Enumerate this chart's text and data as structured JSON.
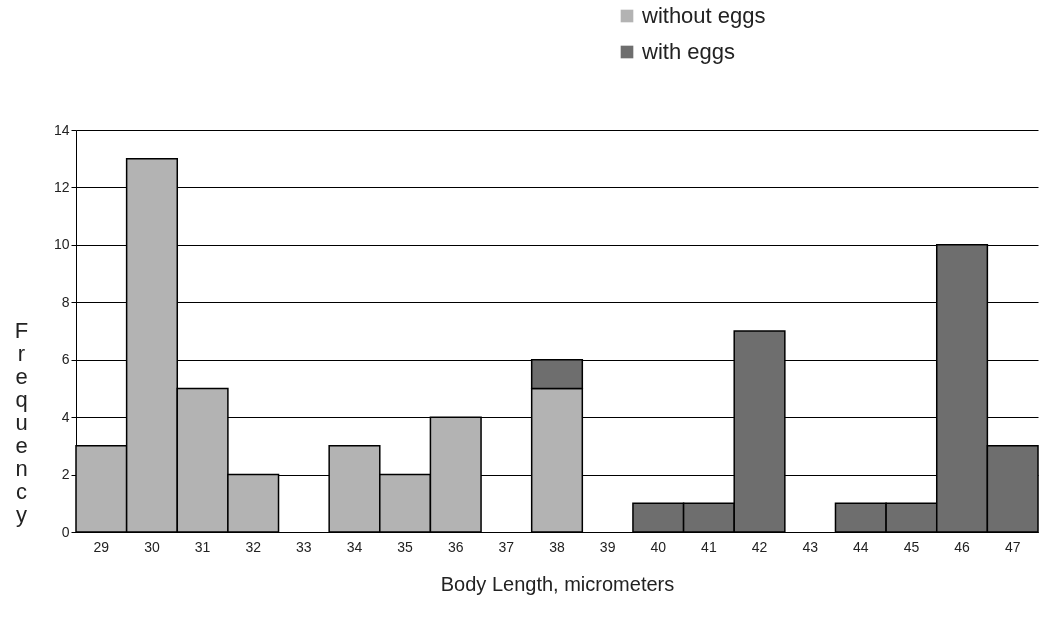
{
  "chart_data": {
    "type": "bar",
    "stacked": true,
    "xlabel": "Body Length, micrometers",
    "ylabel": "Frequency",
    "categories": [
      "29",
      "30",
      "31",
      "32",
      "33",
      "34",
      "35",
      "36",
      "37",
      "38",
      "39",
      "40",
      "41",
      "42",
      "43",
      "44",
      "45",
      "46",
      "47"
    ],
    "series": [
      {
        "name": "without eggs",
        "color": "#b3b3b3",
        "values": [
          3,
          13,
          5,
          2,
          null,
          3,
          2,
          4,
          null,
          5,
          null,
          null,
          null,
          null,
          null,
          null,
          null,
          null,
          null
        ]
      },
      {
        "name": "with eggs",
        "color": "#6e6e6e",
        "values": [
          null,
          null,
          null,
          null,
          null,
          null,
          null,
          null,
          null,
          1,
          null,
          1,
          1,
          7,
          null,
          1,
          1,
          10,
          3
        ]
      }
    ],
    "ylim": [
      0,
      14
    ],
    "yticks": [
      0,
      2,
      4,
      6,
      8,
      10,
      12,
      14
    ],
    "grid": "y",
    "legend": "top right"
  }
}
